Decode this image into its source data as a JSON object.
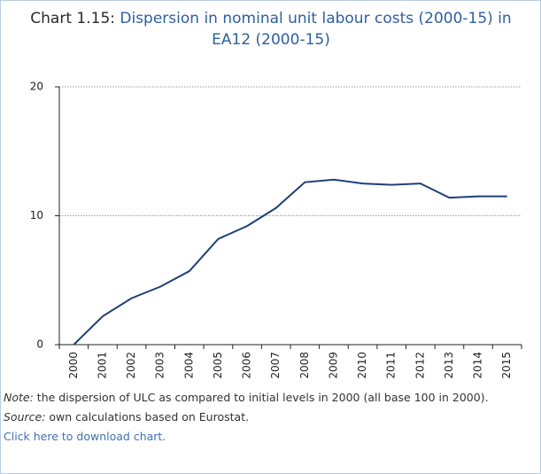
{
  "chart_data": {
    "type": "line",
    "title_label": "Chart 1.15:",
    "title": "Dispersion in nominal unit labour costs (2000-15) in EA12 (2000-15)",
    "categories": [
      "2000",
      "2001",
      "2002",
      "2003",
      "2004",
      "2005",
      "2006",
      "2007",
      "2008",
      "2009",
      "2010",
      "2011",
      "2012",
      "2013",
      "2014",
      "2015"
    ],
    "values": [
      0,
      2.2,
      3.6,
      4.5,
      5.7,
      8.2,
      9.2,
      10.6,
      12.6,
      12.8,
      12.5,
      12.4,
      12.5,
      11.4,
      11.5,
      11.5
    ],
    "color": "#1f3f77",
    "ylim": [
      0,
      20
    ],
    "yticks": [
      0,
      10,
      20
    ],
    "grid": true
  },
  "notes": {
    "note_label": "Note:",
    "note_text": "the dispersion of ULC as compared to initial levels in 2000 (all base 100 in 2000).",
    "source_label": "Source:",
    "source_text": "own calculations based on Eurostat.",
    "download_link": "Click here to download chart."
  }
}
